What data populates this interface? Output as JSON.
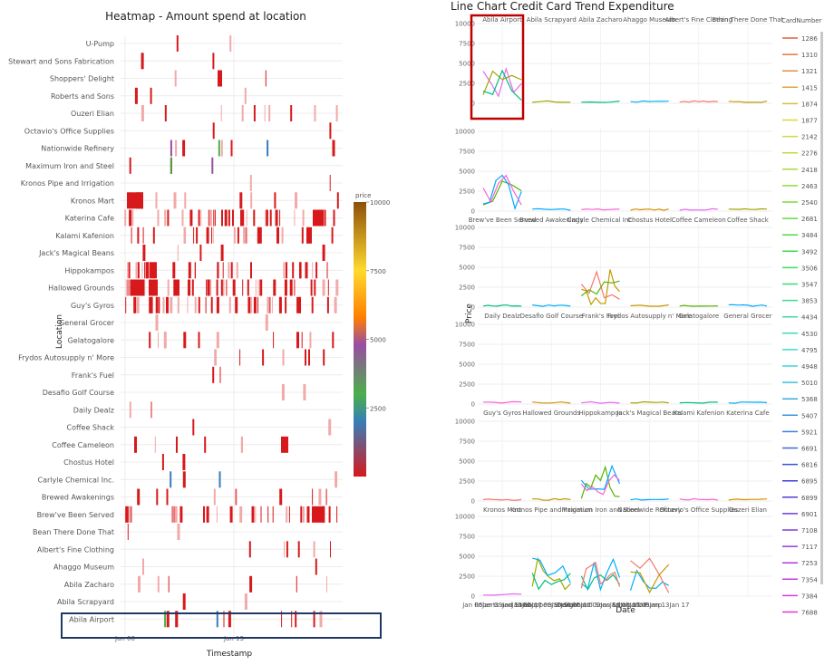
{
  "colors": {
    "low": "#d7191c",
    "green": "#4daf4a",
    "blue": "#377eb8",
    "purple": "#984ea3",
    "orange": "#ff7f00",
    "yellow": "#ffd92f",
    "brown": "#8c510a",
    "highlight_red": "#c00000",
    "highlight_blue": "#1f3864"
  },
  "chart_data": [
    {
      "type": "heatmap",
      "title": "Heatmap - Amount spend at location",
      "xlabel": "Timestamp",
      "ylabel": "Location",
      "x_ticks": [
        "Jan 06",
        "Jan 13"
      ],
      "colorbar": {
        "title": "price",
        "ticks": [
          10000,
          7500,
          5000,
          2500
        ],
        "range": [
          0,
          10000
        ]
      },
      "y_categories": [
        "U-Pump",
        "Stewart and Sons Fabrication",
        "Shoppers' Delight",
        "Roberts and Sons",
        "Ouzeri Elian",
        "Octavio's Office Supplies",
        "Nationwide Refinery",
        "Maximum Iron and Steel",
        "Kronos Pipe and Irrigation",
        "Kronos Mart",
        "Katerina Cafe",
        "Kalami Kafenion",
        "Jack's Magical Beans",
        "Hippokampos",
        "Hallowed Grounds",
        "Guy's Gyros",
        "General Grocer",
        "Gelatogalore",
        "Frydos Autosupply n' More",
        "Frank's Fuel",
        "Desafio Golf Course",
        "Daily Dealz",
        "Coffee Shack",
        "Coffee Cameleon",
        "Chostus Hotel",
        "Carlyle Chemical Inc.",
        "Brewed Awakenings",
        "Brew've Been Served",
        "Bean There Done That",
        "Albert's Fine Clothing",
        "Ahaggo Museum",
        "Abila Zacharo",
        "Abila Scrapyard",
        "Abila Airport"
      ],
      "highlighted_row": "Abila Airport"
    },
    {
      "type": "line",
      "title": "Line Chart Credit Card Trend Expenditure",
      "xlabel": "Date",
      "ylabel": "Price",
      "y_ticks": [
        0,
        2500,
        5000,
        7500,
        10000
      ],
      "x_tick_text": "Jan 6 Jan 9 Jan 13 Jan 17",
      "x_tick_display": "Jan 06Jan 09Jan 13Jan 17",
      "facet_rows": [
        [
          "Abila Airport",
          "Abila Scrapyard",
          "Abila Zacharo",
          "Ahaggo Museum",
          "Albert's Fine Clothing",
          "Bean There Done That"
        ],
        [
          "Brew've Been Served",
          "Brewed Awakenings",
          "Carlyle Chemical Inc.",
          "Chostus Hotel",
          "Coffee Cameleon",
          "Coffee Shack"
        ],
        [
          "Daily Dealz",
          "Desafio Golf Course",
          "Frank's Fuel",
          "Frydos Autosupply n' More",
          "Gelatogalore",
          "General Grocer"
        ],
        [
          "Guy's Gyros",
          "Hallowed Grounds",
          "Hippokampos",
          "Jack's Magical Beans",
          "Kalami Kafenion",
          "Katerina Cafe"
        ],
        [
          "Kronos Mart",
          "Kronos Pipe and Irrigation",
          "Maximum Iron and Steel",
          "Nationwide Refinery",
          "Octavio's Office Supplies",
          "Ouzeri Elian"
        ],
        [
          "Roberts and Sons",
          "Shoppers' Delight",
          "Stewart and Sons Fabrication",
          "U-Pump",
          "",
          ""
        ]
      ],
      "highlighted_facet": "Abila Airport",
      "legend": {
        "title": "CardNumber",
        "entries": [
          "1286",
          "1310",
          "1321",
          "1415",
          "1874",
          "1877",
          "2142",
          "2276",
          "2418",
          "2463",
          "2540",
          "2681",
          "3484",
          "3492",
          "3506",
          "3547",
          "3853",
          "4434",
          "4530",
          "4795",
          "4948",
          "5010",
          "5368",
          "5407",
          "5921",
          "6691",
          "6816",
          "6895",
          "6899",
          "6901",
          "7108",
          "7117",
          "7253",
          "7354",
          "7384",
          "7688"
        ]
      }
    }
  ]
}
